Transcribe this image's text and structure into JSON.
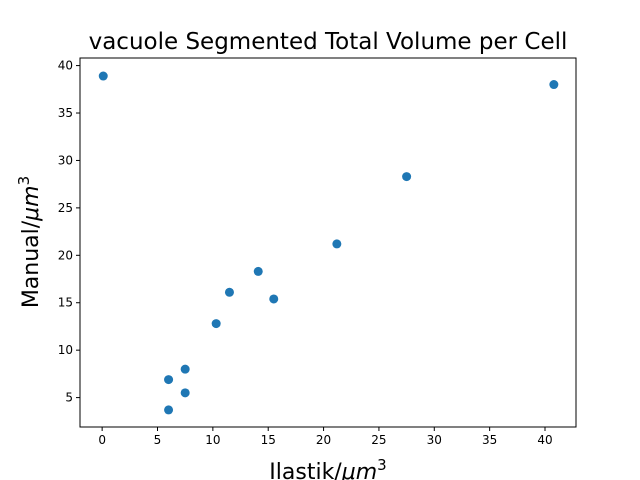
{
  "chart_data": {
    "type": "scatter",
    "title": "vacuole Segmented Total Volume per Cell",
    "xlabel": {
      "main": "Ilastik/",
      "unit": "μm",
      "sup": "3"
    },
    "ylabel": {
      "main": "Manual/",
      "unit": "μm",
      "sup": "3"
    },
    "xlim": [
      -2.0,
      42.8
    ],
    "ylim": [
      1.9,
      40.8
    ],
    "xticks": [
      0,
      5,
      10,
      15,
      20,
      25,
      30,
      35,
      40
    ],
    "yticks": [
      5,
      10,
      15,
      20,
      25,
      30,
      35,
      40
    ],
    "grid": false,
    "marker_color": "#1f77b4",
    "points": [
      {
        "x": 0.1,
        "y": 38.9
      },
      {
        "x": 40.8,
        "y": 38.0
      },
      {
        "x": 27.5,
        "y": 28.3
      },
      {
        "x": 21.2,
        "y": 21.2
      },
      {
        "x": 14.1,
        "y": 18.3
      },
      {
        "x": 11.5,
        "y": 16.1
      },
      {
        "x": 15.5,
        "y": 15.4
      },
      {
        "x": 10.3,
        "y": 12.8
      },
      {
        "x": 7.5,
        "y": 8.0
      },
      {
        "x": 6.0,
        "y": 6.9
      },
      {
        "x": 7.5,
        "y": 5.5
      },
      {
        "x": 6.0,
        "y": 3.7
      }
    ]
  }
}
